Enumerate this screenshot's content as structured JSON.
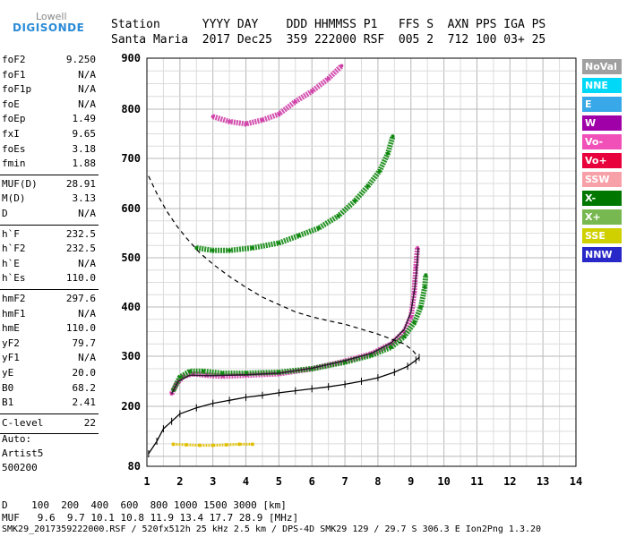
{
  "logo": {
    "top": "Lowell",
    "main": "DIGISONDE"
  },
  "header": {
    "row1": "Station      YYYY DAY    DDD HHMMSS P1   FFS S  AXN PPS IGA PS",
    "row2": "Santa Maria  2017 Dec25  359 222000 RSF  005 2  712 100 03+ 25"
  },
  "parameters": [
    [
      {
        "name": "foF2",
        "value": "9.250"
      },
      {
        "name": "foF1",
        "value": "N/A"
      },
      {
        "name": "foF1p",
        "value": "N/A"
      },
      {
        "name": "foE",
        "value": "N/A"
      },
      {
        "name": "foEp",
        "value": "1.49"
      },
      {
        "name": "fxI",
        "value": "9.65"
      },
      {
        "name": "foEs",
        "value": "3.18"
      },
      {
        "name": "fmin",
        "value": "1.88"
      }
    ],
    [
      {
        "name": "MUF(D)",
        "value": "28.91"
      },
      {
        "name": "M(D)",
        "value": "3.13"
      },
      {
        "name": "D",
        "value": "N/A"
      }
    ],
    [
      {
        "name": "h`F",
        "value": "232.5"
      },
      {
        "name": "h`F2",
        "value": "232.5"
      },
      {
        "name": "h`E",
        "value": "N/A"
      },
      {
        "name": "h`Es",
        "value": "110.0"
      }
    ],
    [
      {
        "name": "hmF2",
        "value": "297.6"
      },
      {
        "name": "hmF1",
        "value": "N/A"
      },
      {
        "name": "hmE",
        "value": "110.0"
      },
      {
        "name": "yF2",
        "value": "79.7"
      },
      {
        "name": "yF1",
        "value": "N/A"
      },
      {
        "name": "yE",
        "value": "20.0"
      },
      {
        "name": "B0",
        "value": "68.2"
      },
      {
        "name": "B1",
        "value": "2.41"
      }
    ],
    [
      {
        "name": "C-level",
        "value": "22"
      }
    ]
  ],
  "auto": {
    "line1": "Auto:",
    "line2": "Artist5",
    "line3": "500200"
  },
  "legend": [
    {
      "label": "NoVal",
      "bg": "#a0a0a0",
      "fg": "#ffffff"
    },
    {
      "label": "NNE",
      "bg": "#00d8f8",
      "fg": "#ffffff"
    },
    {
      "label": "E",
      "bg": "#38a8e8",
      "fg": "#ffffff"
    },
    {
      "label": "W",
      "bg": "#a000a8",
      "fg": "#ffffff"
    },
    {
      "label": "Vo-",
      "bg": "#f050b8",
      "fg": "#ffffff"
    },
    {
      "label": "Vo+",
      "bg": "#e8003c",
      "fg": "#ffffff"
    },
    {
      "label": "SSW",
      "bg": "#f8a0a8",
      "fg": "#ffffff"
    },
    {
      "label": "X-",
      "bg": "#007800",
      "fg": "#ffffff"
    },
    {
      "label": "X+",
      "bg": "#78b850",
      "fg": "#ffffff"
    },
    {
      "label": "SSE",
      "bg": "#d0d000",
      "fg": "#ffffff"
    },
    {
      "label": "NNW",
      "bg": "#2828c8",
      "fg": "#ffffff"
    }
  ],
  "chart_data": {
    "type": "scatter",
    "xlim": [
      1,
      14
    ],
    "ylim": [
      80,
      900
    ],
    "xticks": [
      1,
      2,
      3,
      4,
      5,
      6,
      7,
      8,
      9,
      10,
      11,
      12,
      13,
      14
    ],
    "yticks": [
      80,
      200,
      300,
      400,
      500,
      600,
      700,
      800,
      900
    ],
    "grid": true,
    "traces": {
      "o_trace": {
        "color": "#d040a8",
        "points": [
          [
            1.75,
            225
          ],
          [
            1.9,
            245
          ],
          [
            2.1,
            260
          ],
          [
            2.4,
            265
          ],
          [
            2.8,
            262
          ],
          [
            3.3,
            260
          ],
          [
            4,
            262
          ],
          [
            5,
            265
          ],
          [
            6,
            275
          ],
          [
            7,
            290
          ],
          [
            7.8,
            305
          ],
          [
            8.4,
            325
          ],
          [
            8.8,
            350
          ],
          [
            9.0,
            380
          ],
          [
            9.1,
            430
          ],
          [
            9.15,
            480
          ],
          [
            9.2,
            520
          ]
        ]
      },
      "x_trace": {
        "color": "#108810",
        "points": [
          [
            1.8,
            232
          ],
          [
            2.0,
            258
          ],
          [
            2.3,
            270
          ],
          [
            2.7,
            270
          ],
          [
            3.3,
            266
          ],
          [
            4,
            266
          ],
          [
            5,
            268
          ],
          [
            6,
            275
          ],
          [
            7,
            288
          ],
          [
            7.8,
            302
          ],
          [
            8.4,
            318
          ],
          [
            8.8,
            340
          ],
          [
            9.1,
            368
          ],
          [
            9.3,
            400
          ],
          [
            9.42,
            440
          ],
          [
            9.45,
            465
          ]
        ]
      },
      "second_hop": {
        "color": "#108810",
        "points": [
          [
            2.5,
            520
          ],
          [
            3,
            515
          ],
          [
            3.5,
            515
          ],
          [
            4.2,
            520
          ],
          [
            5,
            530
          ],
          [
            5.6,
            545
          ],
          [
            6.2,
            560
          ],
          [
            6.8,
            585
          ],
          [
            7.3,
            615
          ],
          [
            7.7,
            645
          ],
          [
            8.05,
            675
          ],
          [
            8.3,
            710
          ],
          [
            8.45,
            745
          ]
        ]
      },
      "third_hop": {
        "color": "#d040a8",
        "points": [
          [
            3,
            785
          ],
          [
            3.5,
            775
          ],
          [
            4,
            770
          ],
          [
            4.5,
            778
          ],
          [
            5,
            790
          ],
          [
            5.5,
            815
          ],
          [
            6,
            835
          ],
          [
            6.5,
            860
          ],
          [
            6.9,
            885
          ]
        ]
      },
      "es_trace": {
        "color": "#e0c000",
        "points": [
          [
            1.8,
            124
          ],
          [
            2.2,
            123
          ],
          [
            2.6,
            122
          ],
          [
            3.0,
            122
          ],
          [
            3.4,
            123
          ],
          [
            3.8,
            124
          ],
          [
            4.2,
            124
          ]
        ]
      }
    },
    "o_fit": [
      [
        1.75,
        225
      ],
      [
        1.95,
        250
      ],
      [
        2.3,
        262
      ],
      [
        3,
        261
      ],
      [
        4,
        263
      ],
      [
        5,
        266
      ],
      [
        6,
        276
      ],
      [
        7,
        291
      ],
      [
        7.8,
        306
      ],
      [
        8.4,
        327
      ],
      [
        8.8,
        355
      ],
      [
        9.0,
        390
      ],
      [
        9.12,
        440
      ],
      [
        9.18,
        480
      ],
      [
        9.22,
        520
      ]
    ],
    "profile": [
      [
        1.05,
        105
      ],
      [
        1.3,
        130
      ],
      [
        1.5,
        155
      ],
      [
        1.75,
        170
      ],
      [
        2.0,
        185
      ],
      [
        2.5,
        197
      ],
      [
        3,
        206
      ],
      [
        3.5,
        212
      ],
      [
        4,
        218
      ],
      [
        4.5,
        222
      ],
      [
        5,
        227
      ],
      [
        5.5,
        231
      ],
      [
        6,
        235
      ],
      [
        6.5,
        239
      ],
      [
        7,
        244
      ],
      [
        7.5,
        250
      ],
      [
        8,
        257
      ],
      [
        8.5,
        268
      ],
      [
        8.9,
        280
      ],
      [
        9.15,
        292
      ],
      [
        9.25,
        297.6
      ]
    ],
    "mpf_curve": [
      [
        1.05,
        665
      ],
      [
        1.3,
        630
      ],
      [
        1.6,
        595
      ],
      [
        1.9,
        565
      ],
      [
        2.2,
        540
      ],
      [
        2.6,
        510
      ],
      [
        3,
        487
      ],
      [
        3.5,
        462
      ],
      [
        4,
        440
      ],
      [
        4.5,
        420
      ],
      [
        5,
        405
      ],
      [
        5.5,
        390
      ],
      [
        6,
        380
      ],
      [
        6.5,
        372
      ],
      [
        7,
        365
      ],
      [
        7.5,
        355
      ],
      [
        8,
        345
      ],
      [
        8.4,
        335
      ],
      [
        8.8,
        325
      ],
      [
        9.05,
        312
      ],
      [
        9.2,
        300
      ]
    ]
  },
  "footer": {
    "line1": "D    100  200  400  600  800 1000 1500 3000 [km]",
    "line2": "MUF   9.6  9.7 10.1 10.8 11.9 13.4 17.7 28.9 [MHz]",
    "line3": "SMK29_2017359222000.RSF / 520fx512h 25 kHz 2.5 km / DPS-4D SMK29 129 / 29.7 S 306.3 E Ion2Png 1.3.20"
  }
}
